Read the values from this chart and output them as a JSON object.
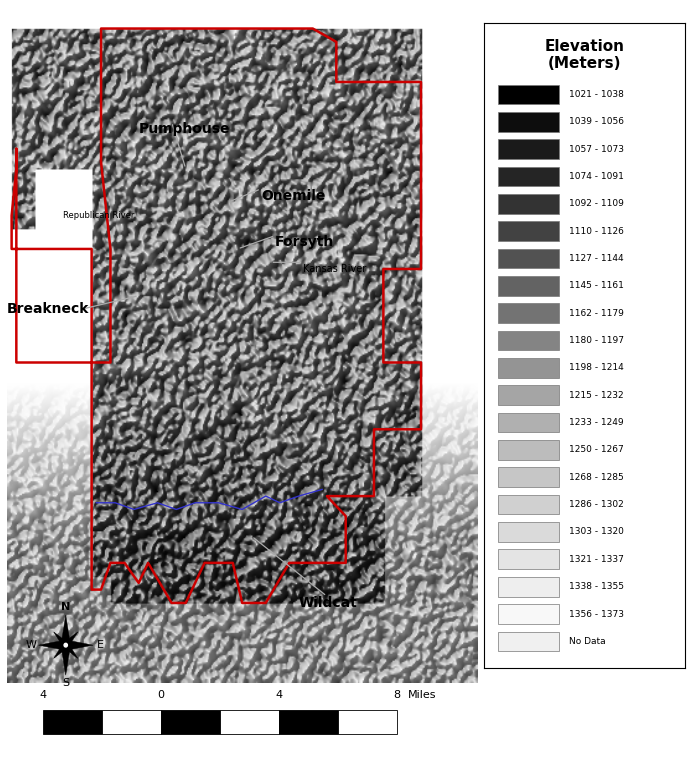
{
  "legend_title": "Elevation\n(Meters)",
  "legend_entries": [
    {
      "label": "1021 - 1038",
      "color": "#000000"
    },
    {
      "label": "1039 - 1056",
      "color": "#0d0d0d"
    },
    {
      "label": "1057 - 1073",
      "color": "#1a1a1a"
    },
    {
      "label": "1074 - 1091",
      "color": "#252525"
    },
    {
      "label": "1092 - 1109",
      "color": "#333333"
    },
    {
      "label": "1110 - 1126",
      "color": "#424242"
    },
    {
      "label": "1127 - 1144",
      "color": "#525252"
    },
    {
      "label": "1145 - 1161",
      "color": "#636363"
    },
    {
      "label": "1162 - 1179",
      "color": "#737373"
    },
    {
      "label": "1180 - 1197",
      "color": "#848484"
    },
    {
      "label": "1198 - 1214",
      "color": "#949494"
    },
    {
      "label": "1215 - 1232",
      "color": "#a5a5a5"
    },
    {
      "label": "1233 - 1249",
      "color": "#b0b0b0"
    },
    {
      "label": "1250 - 1267",
      "color": "#bcbcbc"
    },
    {
      "label": "1268 - 1285",
      "color": "#c6c6c6"
    },
    {
      "label": "1286 - 1302",
      "color": "#d0d0d0"
    },
    {
      "label": "1303 - 1320",
      "color": "#dadada"
    },
    {
      "label": "1321 - 1337",
      "color": "#e4e4e4"
    },
    {
      "label": "1338 - 1355",
      "color": "#eeeeee"
    },
    {
      "label": "1356 - 1373",
      "color": "#f8f8f8"
    },
    {
      "label": "No Data",
      "color": "#f0f0f0"
    }
  ],
  "boundary_color": "#cc0000",
  "river_color": "#3333cc",
  "label_line_color": "#aaaaaa",
  "background": "#ffffff"
}
